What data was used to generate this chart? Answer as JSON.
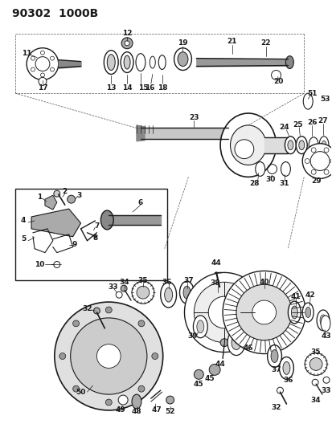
{
  "title": "90302  1000B",
  "bg": "#ffffff",
  "lc": "#1a1a1a",
  "figsize": [
    4.14,
    5.33
  ],
  "dpi": 100,
  "title_fs": 10,
  "label_fs": 6.5
}
